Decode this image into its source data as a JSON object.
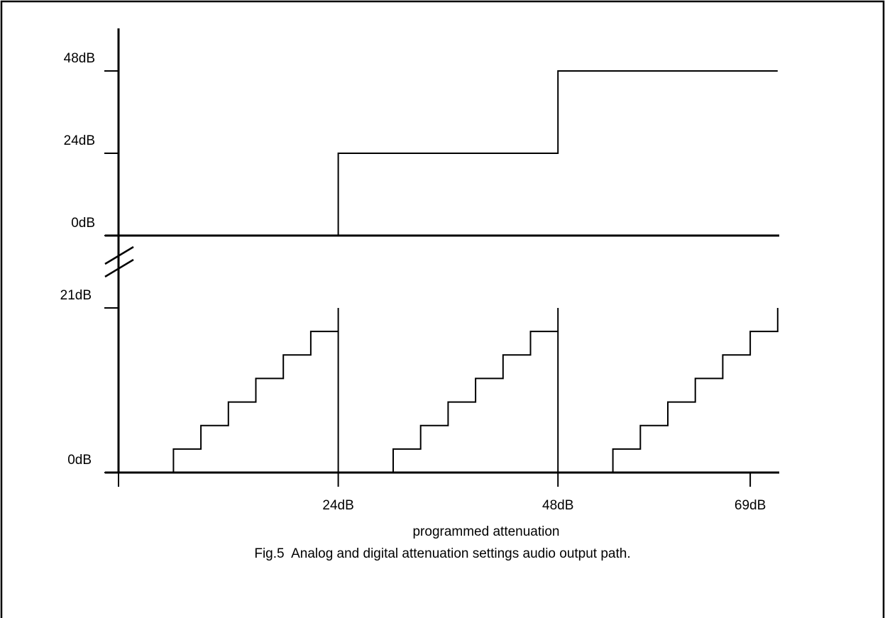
{
  "chart_data": [
    {
      "type": "line",
      "step": true,
      "title": "",
      "xlabel": "",
      "ylabel": "",
      "x_unit": "dB",
      "xlim": [
        0,
        72
      ],
      "ylim": [
        0,
        48
      ],
      "yticks": [
        {
          "value": 48,
          "label": "48dB"
        },
        {
          "value": 24,
          "label": "24dB"
        },
        {
          "value": 0,
          "label": "0dB"
        }
      ],
      "x": [
        0,
        24,
        24,
        48,
        48,
        72
      ],
      "values": [
        0,
        0,
        24,
        24,
        48,
        48
      ]
    },
    {
      "type": "line",
      "step": true,
      "title": "",
      "xlabel": "programmed attenuation",
      "ylabel": "",
      "x_unit": "dB",
      "xlim": [
        0,
        72
      ],
      "ylim": [
        0,
        21
      ],
      "yticks": [
        {
          "value": 21,
          "label": "21dB"
        },
        {
          "value": 0,
          "label": "0dB"
        }
      ],
      "xticks": [
        {
          "value": 0,
          "label": ""
        },
        {
          "value": 24,
          "label": "24dB"
        },
        {
          "value": 48,
          "label": "48dB"
        },
        {
          "value": 69,
          "label": "69dB"
        }
      ],
      "segments": [
        {
          "x_start": 3,
          "x_end": 24,
          "step_width": 3,
          "values": [
            0,
            3,
            6,
            9,
            12,
            15,
            18,
            21
          ]
        },
        {
          "x_start": 27,
          "x_end": 48,
          "step_width": 3,
          "values": [
            0,
            3,
            6,
            9,
            12,
            15,
            18,
            21
          ]
        },
        {
          "x_start": 51,
          "x_end": 72,
          "step_width": 3,
          "values": [
            0,
            3,
            6,
            9,
            12,
            15,
            18,
            21
          ]
        }
      ]
    }
  ],
  "caption": "Fig.5  Analog and digital attenuation settings audio output path."
}
